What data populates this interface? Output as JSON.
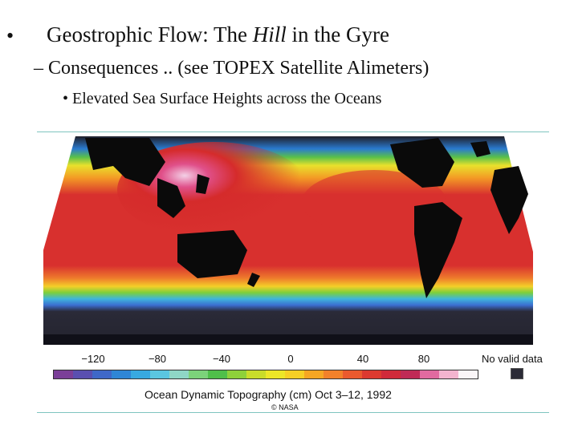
{
  "slide": {
    "bullet": "•",
    "title_part1": "Geostrophic Flow: The ",
    "title_italic": "Hill",
    "title_part2": " in the Gyre",
    "subbullet": "– Consequences .. (see TOPEX Satellite Alimeters)",
    "subsubbullet": "• Elevated Sea Surface Heights across the Oceans"
  },
  "figure": {
    "scale_ticks": [
      "−120",
      "−80",
      "−40",
      "0",
      "40",
      "80"
    ],
    "no_valid_label": "No valid data",
    "caption": "Ocean Dynamic Topography (cm) Oct 3–12, 1992",
    "credit": "© NASA",
    "colorbar_colors": [
      "#7b3f98",
      "#5a4fb0",
      "#3f68c8",
      "#2f86d6",
      "#38a9e0",
      "#5bc6e0",
      "#8fd6c6",
      "#7cd27a",
      "#4fbf4a",
      "#8ed13a",
      "#c9dc2a",
      "#ece628",
      "#f6cf25",
      "#f6a623",
      "#f2812a",
      "#ea5a2e",
      "#dc3a30",
      "#d02a3a",
      "#c02a56",
      "#e16aa0",
      "#f3b4cf",
      "#faf6f8"
    ],
    "no_valid_color": "#2b2b36"
  }
}
